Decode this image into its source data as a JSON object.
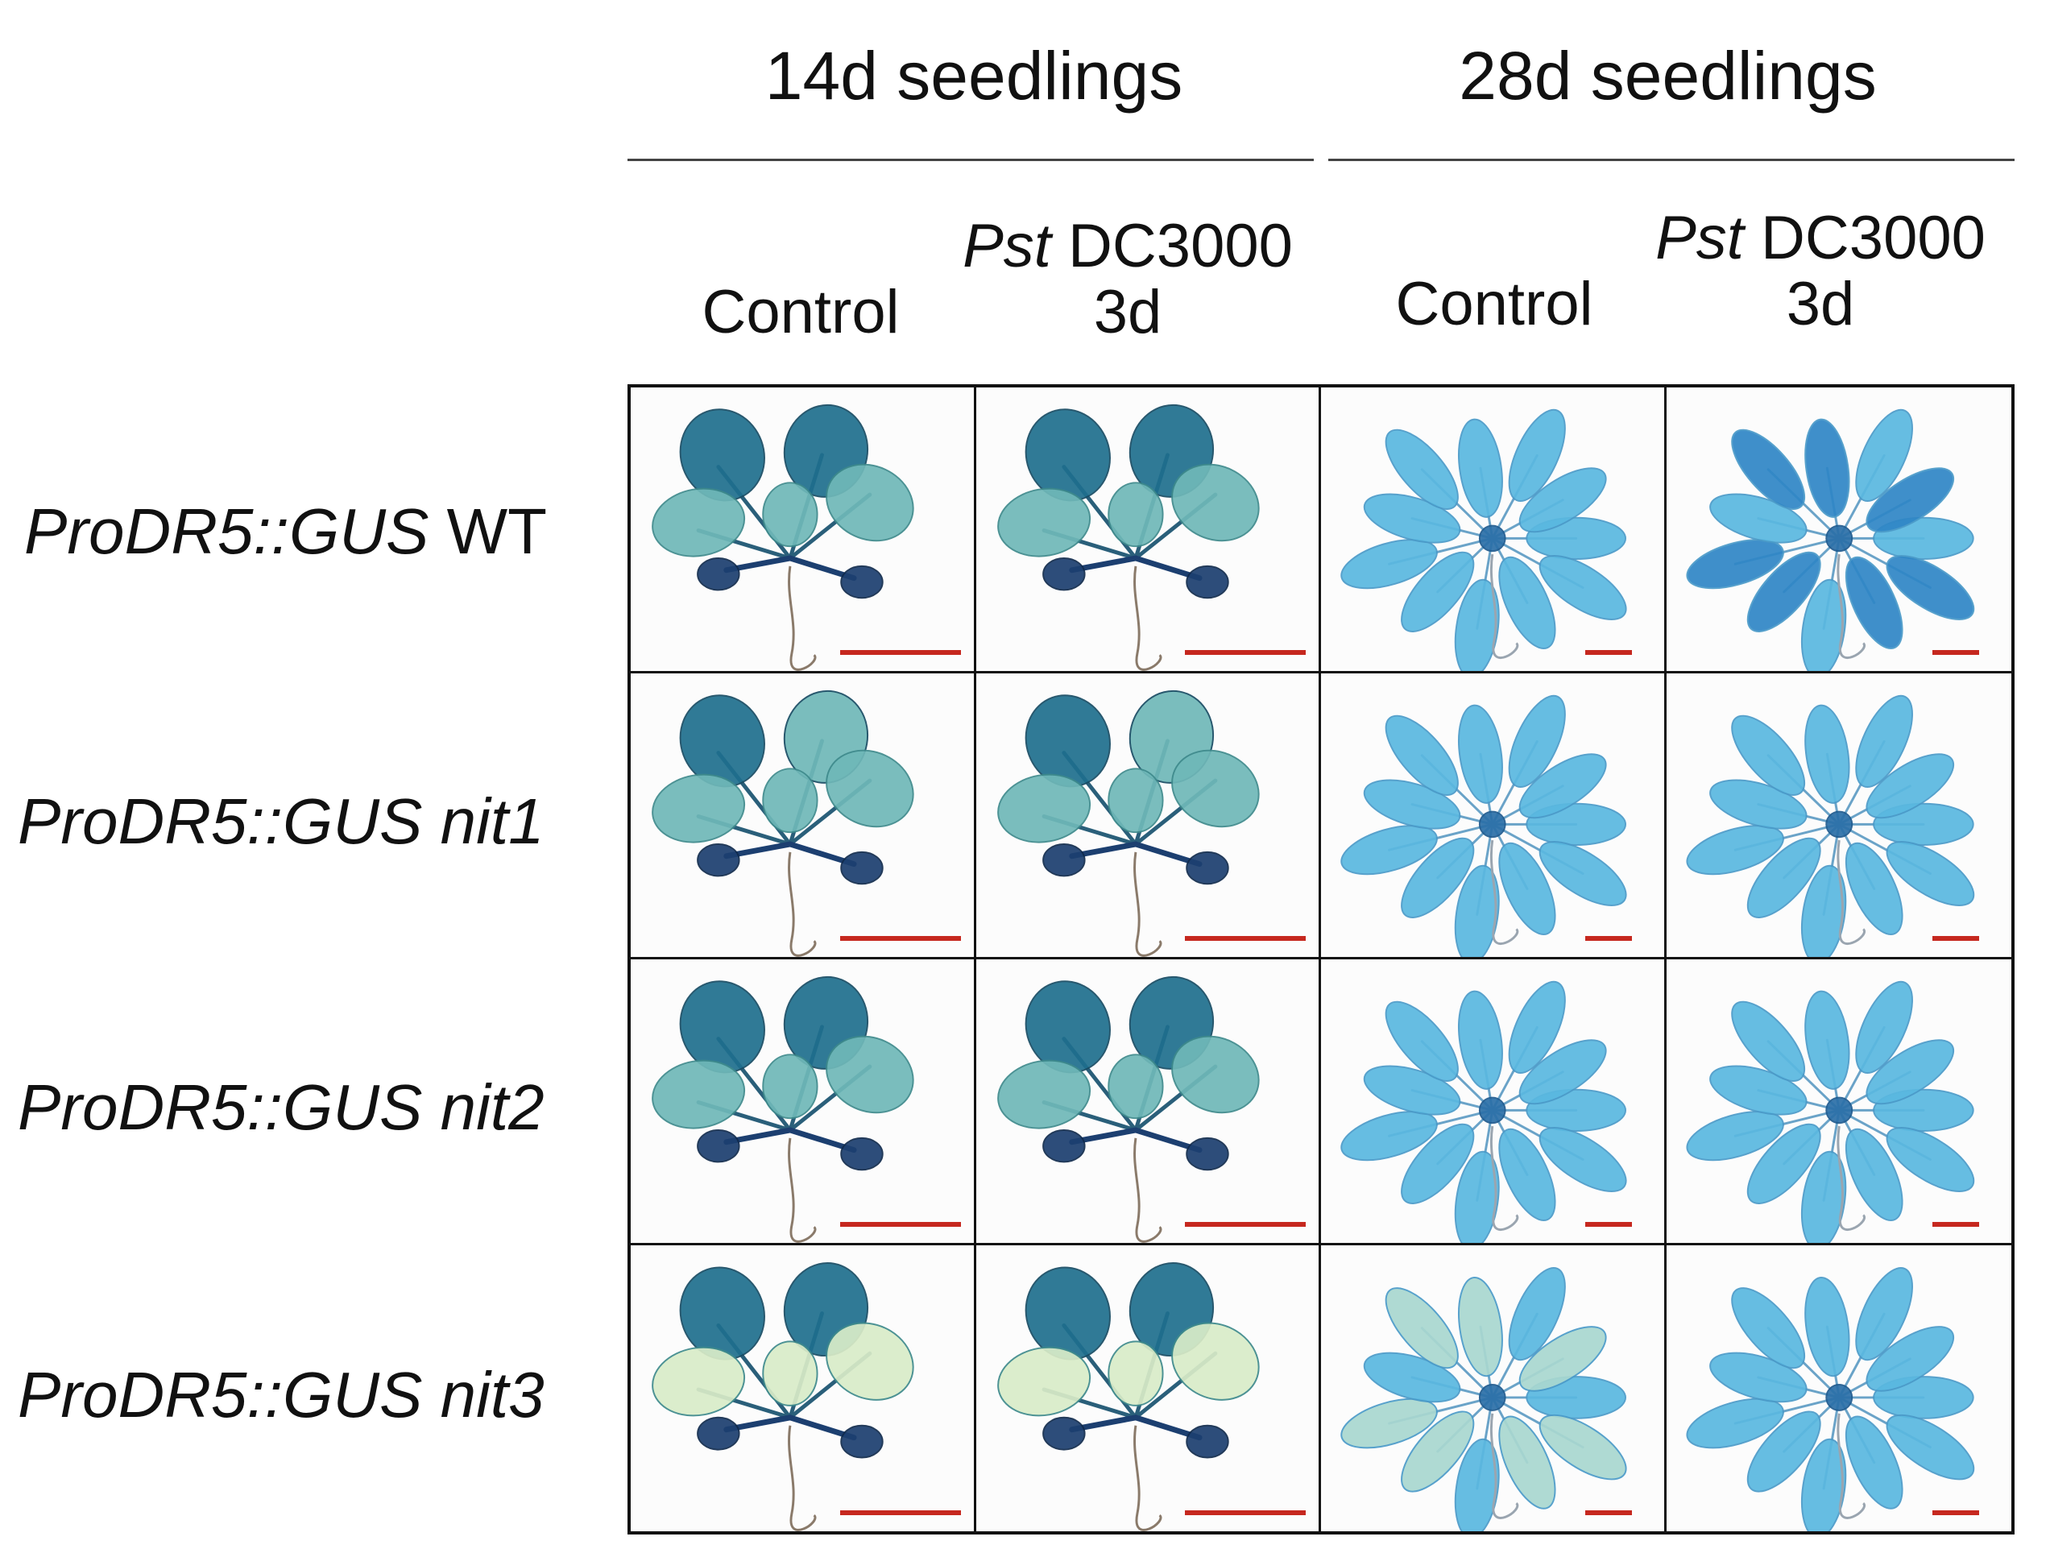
{
  "figure": {
    "groups": [
      {
        "title": "14d seedlings"
      },
      {
        "title": "28d seedlings"
      }
    ],
    "conditions": [
      {
        "line1_italic": "",
        "line1_rest": "",
        "line2": "Control"
      },
      {
        "line1_italic": "Pst",
        "line1_rest": " DC3000",
        "line2": "3d"
      },
      {
        "line1_italic": "",
        "line1_rest": "",
        "line2": "Control"
      },
      {
        "line1_italic": "Pst",
        "line1_rest": " DC3000",
        "line2": "3d"
      }
    ],
    "rows": [
      {
        "label_italic": "ProDR5::GUS",
        "label_rest": " WT"
      },
      {
        "label_italic": "ProDR5::GUS nit1",
        "label_rest": ""
      },
      {
        "label_italic": "ProDR5::GUS nit2",
        "label_rest": ""
      },
      {
        "label_italic": "ProDR5::GUS nit3",
        "label_rest": ""
      }
    ],
    "colors": {
      "stain_dark_14d": "#1f6f8e",
      "stain_light_14d": "#6fb8b8",
      "stain_28d": "#5ab8e0",
      "stain_28d_dark": "#2f86c6",
      "scale_bar": "#c6281f",
      "grid_line": "#111111"
    }
  }
}
